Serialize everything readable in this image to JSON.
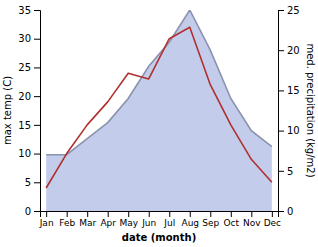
{
  "chart_data": {
    "type": "line",
    "categories": [
      "Jan",
      "Feb",
      "Mar",
      "Apr",
      "May",
      "Jun",
      "Jul",
      "Aug",
      "Sep",
      "Oct",
      "Nov",
      "Dec"
    ],
    "xlabel": "date (month)",
    "ylabel": "max temp (C)",
    "y2label": "med. precipitation (kg/m2)",
    "ylim": [
      0,
      35
    ],
    "yticks": [
      0,
      5,
      10,
      15,
      20,
      25,
      30,
      35
    ],
    "y2lim": [
      0,
      25
    ],
    "y2ticks": [
      0,
      5,
      10,
      15,
      20,
      25
    ],
    "grid": false,
    "series": [
      {
        "type": "area",
        "axis": "y2",
        "color": "#b8c4e8",
        "values": [
          7,
          7,
          9,
          11,
          14,
          18,
          21,
          25,
          20,
          14,
          10,
          8
        ]
      },
      {
        "type": "line",
        "color": "#b03030",
        "values": [
          4,
          10,
          15,
          19,
          24,
          23,
          30,
          32,
          22,
          15,
          9,
          5
        ]
      }
    ]
  }
}
